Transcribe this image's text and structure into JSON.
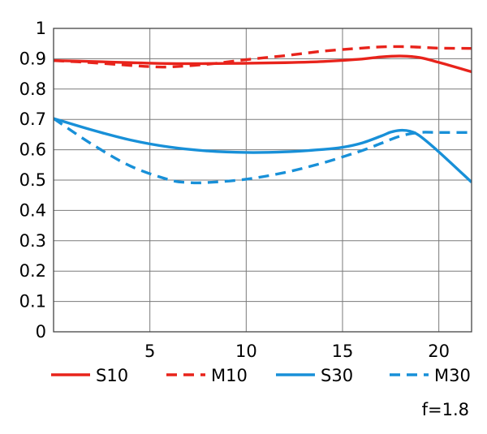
{
  "chart_data": {
    "type": "line",
    "title": "",
    "xlabel": "",
    "ylabel": "",
    "xlim": [
      0,
      21.7
    ],
    "ylim": [
      0,
      1
    ],
    "x_ticks": [
      "5",
      "10",
      "15",
      "20"
    ],
    "y_ticks": [
      "0",
      "0.1",
      "0.2",
      "0.3",
      "0.4",
      "0.5",
      "0.6",
      "0.7",
      "0.8",
      "0.9",
      "1"
    ],
    "grid": true,
    "legend_position": "bottom",
    "annotation": "f=1.8",
    "series": [
      {
        "name": "S10",
        "color": "#e8231b",
        "dash": "solid",
        "x": [
          0,
          2,
          4,
          6,
          8,
          10,
          12,
          14,
          16,
          17,
          18,
          19,
          20,
          21.7
        ],
        "y": [
          0.894,
          0.891,
          0.887,
          0.884,
          0.884,
          0.885,
          0.887,
          0.891,
          0.899,
          0.906,
          0.909,
          0.904,
          0.888,
          0.857
        ]
      },
      {
        "name": "M10",
        "color": "#e8231b",
        "dash": "dashed",
        "x": [
          0,
          2,
          4,
          5,
          6,
          8,
          10,
          12,
          14,
          16,
          17,
          18,
          19,
          20,
          21.7
        ],
        "y": [
          0.894,
          0.887,
          0.878,
          0.874,
          0.873,
          0.882,
          0.897,
          0.91,
          0.925,
          0.935,
          0.939,
          0.94,
          0.938,
          0.935,
          0.934
        ]
      },
      {
        "name": "S30",
        "color": "#1890d8",
        "dash": "solid",
        "x": [
          0,
          2,
          4,
          6,
          8,
          10,
          12,
          14,
          15,
          16,
          17,
          17.5,
          18,
          18.5,
          19,
          20,
          21.7
        ],
        "y": [
          0.703,
          0.665,
          0.632,
          0.609,
          0.596,
          0.591,
          0.593,
          0.601,
          0.608,
          0.622,
          0.645,
          0.658,
          0.664,
          0.661,
          0.646,
          0.593,
          0.493
        ]
      },
      {
        "name": "M30",
        "color": "#1890d8",
        "dash": "dashed",
        "x": [
          0,
          2,
          4,
          6,
          7,
          8,
          10,
          12,
          14,
          16,
          17,
          18,
          19,
          20,
          21.7
        ],
        "y": [
          0.703,
          0.618,
          0.546,
          0.501,
          0.492,
          0.492,
          0.503,
          0.525,
          0.557,
          0.597,
          0.621,
          0.645,
          0.657,
          0.657,
          0.657
        ]
      }
    ]
  }
}
